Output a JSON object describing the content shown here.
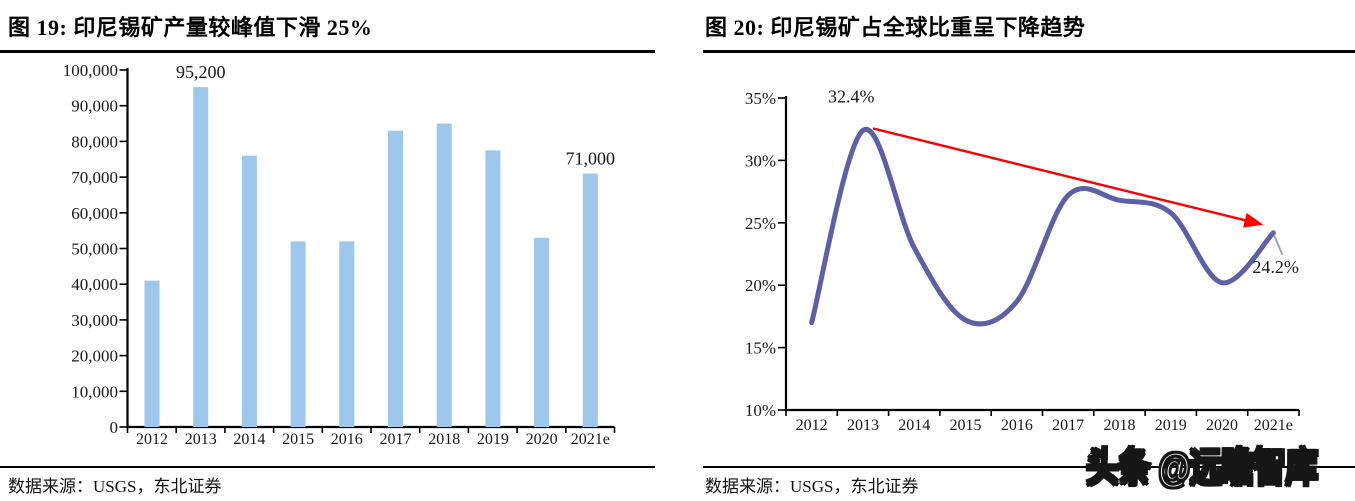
{
  "page": {
    "watermark": "头条 @远瞻智库"
  },
  "panels": [
    {
      "title": "图 19:  印尼锡矿产量较峰值下滑 25%",
      "source": "数据来源：USGS，东北证券"
    },
    {
      "title": "图 20:  印尼锡矿占全球比重呈下降趋势",
      "source": "数据来源：USGS，东北证券"
    }
  ],
  "chart_data": [
    {
      "type": "bar",
      "title": "印尼锡矿产量较峰值下滑 25%",
      "categories": [
        "2012",
        "2013",
        "2014",
        "2015",
        "2016",
        "2017",
        "2018",
        "2019",
        "2020",
        "2021e"
      ],
      "values": [
        41000,
        95200,
        76000,
        52000,
        52000,
        83000,
        85000,
        77500,
        53000,
        71000
      ],
      "ylim": [
        0,
        100000
      ],
      "ytick_step": 10000,
      "ytick_labels": [
        "100,000",
        "90,000",
        "80,000",
        "70,000",
        "60,000",
        "50,000",
        "40,000",
        "30,000",
        "20,000",
        "10,000",
        "0"
      ],
      "data_labels": [
        {
          "index": 1,
          "label": "95,200"
        },
        {
          "index": 9,
          "label": "71,000"
        }
      ],
      "grid": false,
      "legend": "none",
      "colors": {
        "bar": "#9DC8EC",
        "axis": "#000000",
        "text": "#1A1A1A"
      }
    },
    {
      "type": "line",
      "title": "印尼锡矿占全球比重呈下降趋势",
      "categories": [
        "2012",
        "2013",
        "2014",
        "2015",
        "2016",
        "2017",
        "2018",
        "2019",
        "2020",
        "2021e"
      ],
      "values": [
        17.0,
        32.4,
        23.0,
        17.2,
        18.7,
        27.2,
        26.8,
        25.8,
        20.2,
        24.2
      ],
      "unit": "%",
      "ylim": [
        10,
        35
      ],
      "ytick_step": 5,
      "ytick_labels": [
        "35%",
        "30%",
        "25%",
        "20%",
        "15%",
        "10%"
      ],
      "smooth": true,
      "annotations": {
        "peak": {
          "index": 1,
          "label": "32.4%"
        },
        "end": {
          "index": 9,
          "label": "24.2%"
        },
        "trend_arrow": {
          "from_index": 1,
          "to_index": 9
        }
      },
      "grid": false,
      "legend": "none",
      "colors": {
        "line": "#5C61A6",
        "arrow": "#FF0000",
        "callout": "#A6A6A6",
        "axis": "#000000",
        "text": "#1A1A1A"
      }
    }
  ]
}
